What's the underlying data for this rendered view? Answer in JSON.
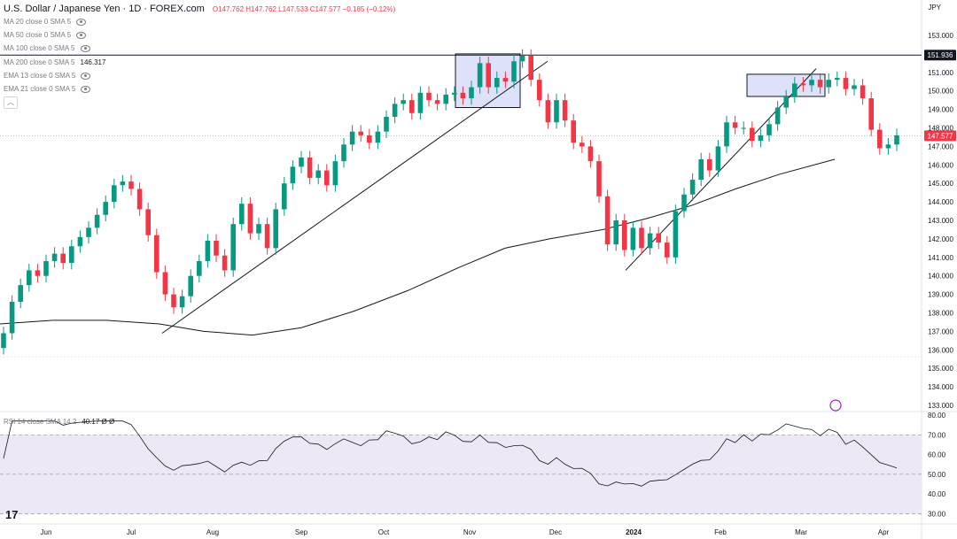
{
  "header": {
    "symbol": "U.S. Dollar / Japanese Yen · 1D · FOREX.com",
    "ohlc": "O147.762  H147.762  L147.533  C147.577  −0.185 (−0.12%)",
    "currency": "JPY"
  },
  "indicators": [
    {
      "label": "MA 20 close 0 SMA 5",
      "value": ""
    },
    {
      "label": "MA 50 close 0 SMA 5",
      "value": ""
    },
    {
      "label": "MA 100 close 0 SMA 5",
      "value": ""
    },
    {
      "label": "MA 200 close 0 SMA 5",
      "value": "146.317"
    },
    {
      "label": "EMA 13 close 0 SMA 5",
      "value": ""
    },
    {
      "label": "EMA 21 close 0 SMA 5",
      "value": ""
    }
  ],
  "rsi_label": "RSI 14 close SMA 14 2",
  "rsi_value": "40.17  Ø  Ø",
  "colors": {
    "up": "#089981",
    "down": "#f23645",
    "box": "#c7cff7",
    "rsi_band": "#ede7f6"
  },
  "chart_data": [
    {
      "type": "candlestick",
      "title": "U.S. Dollar / Japanese Yen · 1D · FOREX.com",
      "y_ticks": [
        133,
        134,
        135,
        136,
        137,
        138,
        139,
        140,
        141,
        142,
        143,
        144,
        145,
        146,
        147,
        148,
        149,
        150,
        151,
        153
      ],
      "ylim": [
        133,
        154
      ],
      "x_ticks": [
        "Jun",
        "Jul",
        "Aug",
        "Sep",
        "Oct",
        "Nov",
        "Dec",
        "2024",
        "Feb",
        "Mar",
        "Apr"
      ],
      "last_price": 147.577,
      "resistance_level": 151.936,
      "ma200_last": 146.317,
      "approximate_closes": [
        136.9,
        138.6,
        139.5,
        140.3,
        140.0,
        140.8,
        141.2,
        140.7,
        141.6,
        142.1,
        142.6,
        143.3,
        144.0,
        144.9,
        145.1,
        144.7,
        143.6,
        142.2,
        140.2,
        139.0,
        138.3,
        138.9,
        140.0,
        140.8,
        141.9,
        141.1,
        140.3,
        142.8,
        143.9,
        142.3,
        142.8,
        141.5,
        143.6,
        145.0,
        145.9,
        146.4,
        145.3,
        145.7,
        144.9,
        146.2,
        147.1,
        147.8,
        147.6,
        147.2,
        147.8,
        148.6,
        149.3,
        149.5,
        148.8,
        149.9,
        149.5,
        149.3,
        149.8,
        149.9,
        149.6,
        150.2,
        151.5,
        150.2,
        150.7,
        150.5,
        151.6,
        151.9,
        150.6,
        149.5,
        148.3,
        149.5,
        148.4,
        147.2,
        147.0,
        146.2,
        144.3,
        141.7,
        143.0,
        141.4,
        142.6,
        141.5,
        142.3,
        141.8,
        141.0,
        143.5,
        144.4,
        145.2,
        146.3,
        145.7,
        147.0,
        148.3,
        148.0,
        148.0,
        147.3,
        147.6,
        148.2,
        149.1,
        149.7,
        150.4,
        150.3,
        150.6,
        150.2,
        150.6,
        150.7,
        150.1,
        150.3,
        149.6,
        147.9,
        146.9,
        147.1,
        147.6
      ]
    },
    {
      "type": "line",
      "title": "RSI 14 close SMA 14 2",
      "y_ticks": [
        30,
        40,
        50,
        60,
        70,
        80
      ],
      "ylim": [
        30,
        80
      ],
      "bands": [
        30,
        70
      ],
      "last_value": 40.17
    }
  ]
}
